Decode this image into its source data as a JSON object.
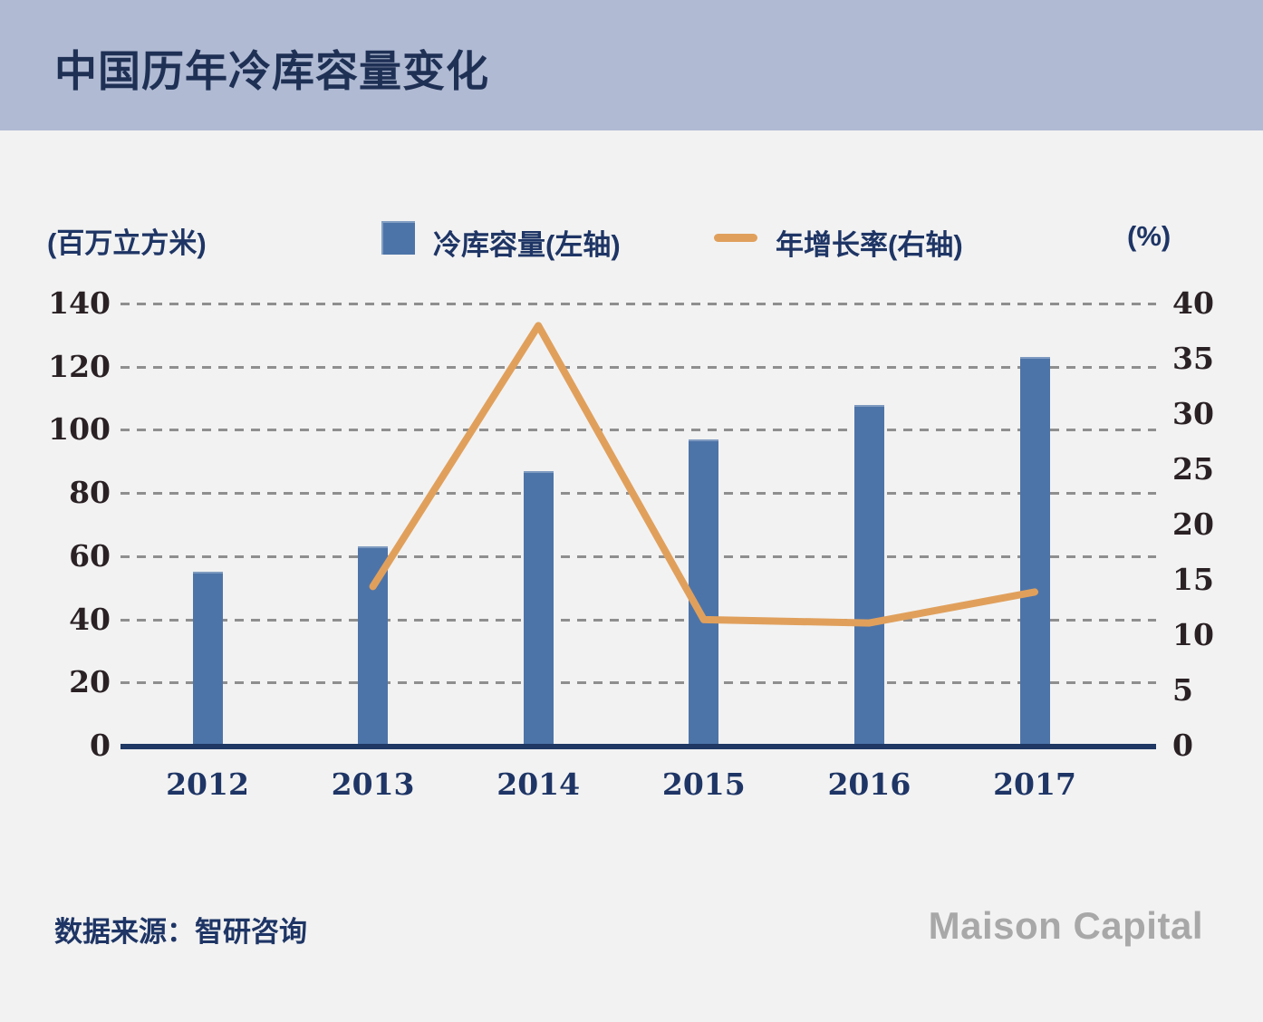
{
  "title": "中国历年冷库容量变化",
  "legend": {
    "left_axis_unit": "(百万立方米)",
    "right_axis_unit": "(%)",
    "bar_series_label": "冷库容量(左轴)",
    "line_series_label": "年增长率(右轴)"
  },
  "chart_data": {
    "type": "combo",
    "title": "中国历年冷库容量变化",
    "categories": [
      "2012",
      "2013",
      "2014",
      "2015",
      "2016",
      "2017"
    ],
    "series": [
      {
        "name": "冷库容量(左轴)",
        "type": "bar",
        "axis": "left",
        "values": [
          55,
          63,
          87,
          97,
          108,
          123
        ]
      },
      {
        "name": "年增长率(右轴)",
        "type": "line",
        "axis": "right",
        "x": [
          "2013",
          "2014",
          "2015",
          "2016",
          "2017"
        ],
        "values": [
          14.4,
          38,
          11.4,
          11.1,
          13.9
        ]
      }
    ],
    "left_axis": {
      "label": "(百万立方米)",
      "range": [
        0,
        140
      ],
      "ticks": [
        0,
        20,
        40,
        60,
        80,
        100,
        120,
        140
      ]
    },
    "right_axis": {
      "label": "(%)",
      "range": [
        0,
        40
      ],
      "ticks": [
        0,
        5,
        10,
        15,
        20,
        25,
        30,
        35,
        40
      ]
    },
    "grid": {
      "horizontal": "dashed"
    },
    "legend_position": "top"
  },
  "footer": {
    "source": "数据来源：智研咨询",
    "logo": "Maison Capital"
  },
  "colors": {
    "header_bg": "#b0bad3",
    "page_bg": "#f2f2f2",
    "navy_text": "#1e3565",
    "bar": "#4d74a8",
    "line": "#e0a05c",
    "baseline": "#1f3864",
    "tick_text": "#2a2124",
    "gridline": "#8f8f8f",
    "logo_grey": "#a9a8a8"
  }
}
